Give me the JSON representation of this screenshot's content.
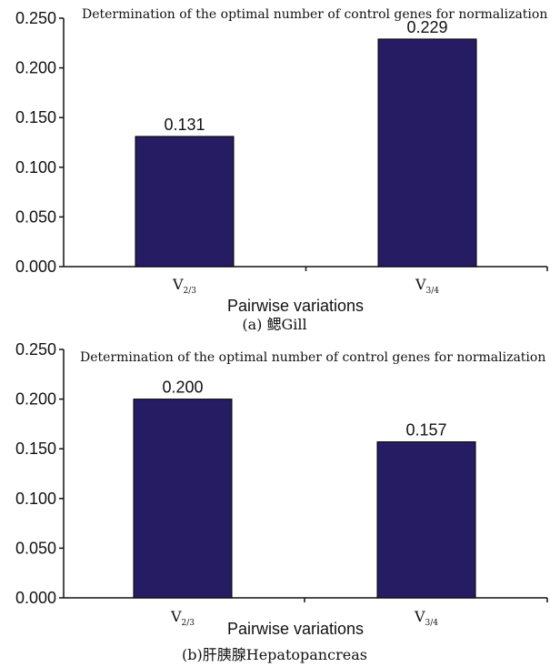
{
  "chart_data": [
    {
      "type": "bar",
      "title": "Determination of the optimal number of control genes for normalization",
      "xlabel": "Pairwise variations",
      "ylabel": "",
      "caption": "(a) 鳃Gill",
      "categories": [
        {
          "main": "V",
          "sub": "2/3"
        },
        {
          "main": "V",
          "sub": "3/4"
        }
      ],
      "values": [
        0.131,
        0.229
      ],
      "value_labels": [
        "0.131",
        "0.229"
      ],
      "ylim": [
        0,
        0.25
      ],
      "yticks": [
        "0.000",
        "0.050",
        "0.100",
        "0.150",
        "0.200",
        "0.250"
      ],
      "bar_color": "#261c63",
      "grid": false
    },
    {
      "type": "bar",
      "title": "Determination of the optimal number of control genes for normalization",
      "xlabel": "Pairwise variations",
      "ylabel": "",
      "caption": "(b)肝胰腺Hepatopancreas",
      "categories": [
        {
          "main": "V",
          "sub": "2/3"
        },
        {
          "main": "V",
          "sub": "3/4"
        }
      ],
      "values": [
        0.2,
        0.157
      ],
      "value_labels": [
        "0.200",
        "0.157"
      ],
      "ylim": [
        0,
        0.25
      ],
      "yticks": [
        "0.000",
        "0.050",
        "0.100",
        "0.150",
        "0.200",
        "0.250"
      ],
      "bar_color": "#261c63",
      "grid": false
    }
  ]
}
